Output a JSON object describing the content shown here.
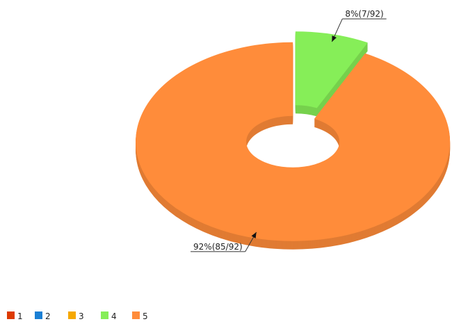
{
  "chart_data": {
    "type": "pie",
    "donut": true,
    "categories": [
      "1",
      "2",
      "3",
      "4",
      "5"
    ],
    "values": [
      0,
      0,
      0,
      7,
      85
    ],
    "value_labels": [
      null,
      null,
      null,
      "8%(7/92)",
      "92%(85/92)"
    ],
    "colors": [
      "#dd3a00",
      "#1a7fd4",
      "#f5a800",
      "#86ee58",
      "#ff8c3a"
    ],
    "legend": "bottom-left"
  }
}
